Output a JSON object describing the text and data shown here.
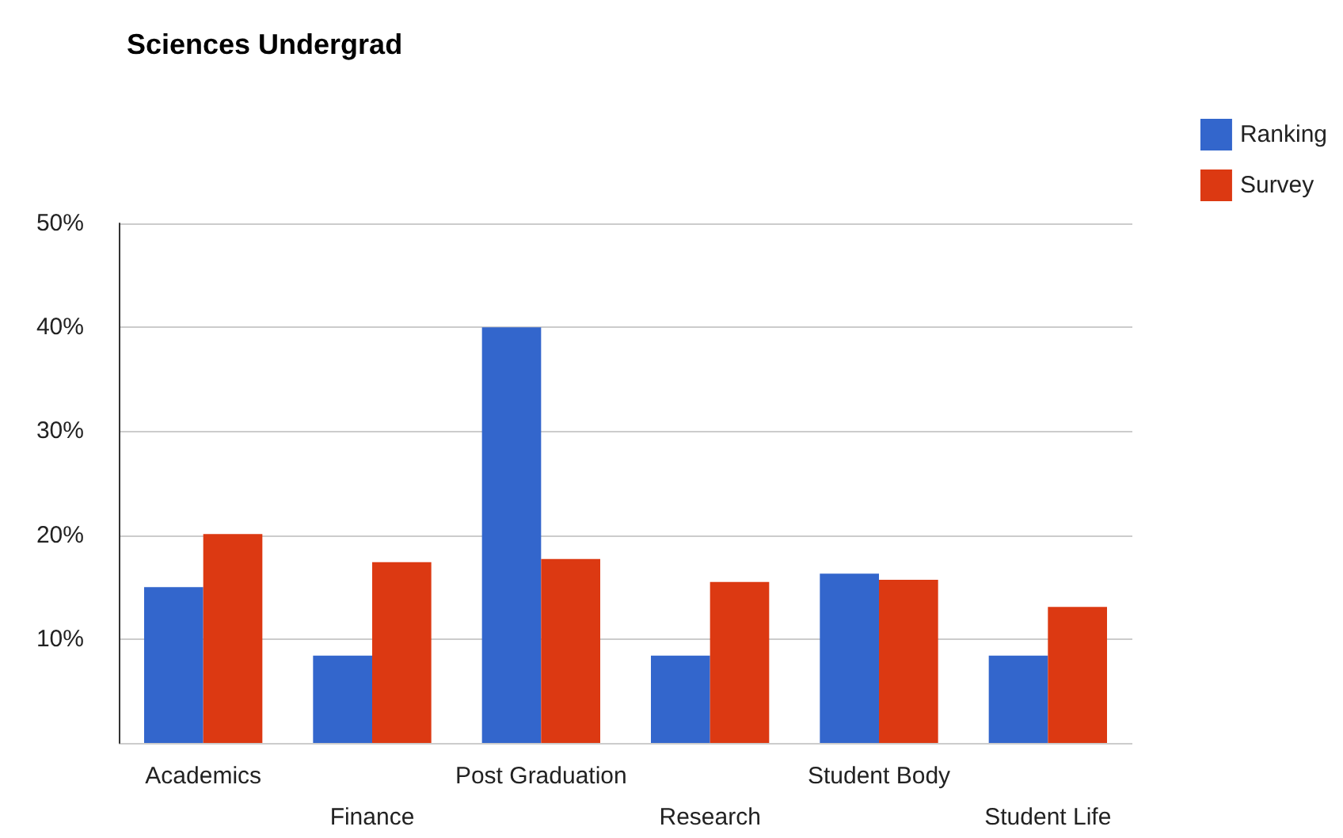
{
  "chart_data": {
    "type": "bar",
    "title": "Sciences Undergrad",
    "categories": [
      "Academics",
      "Finance",
      "Post Graduation",
      "Research",
      "Student Body",
      "Student Life"
    ],
    "series": [
      {
        "name": "Ranking",
        "color": "#3366cc",
        "values": [
          15,
          8.4,
          40,
          8.4,
          16.3,
          8.4
        ]
      },
      {
        "name": "Survey",
        "color": "#dc3912",
        "values": [
          20.1,
          17.4,
          17.7,
          15.5,
          15.7,
          13.1
        ]
      }
    ],
    "ylim": [
      0,
      50
    ],
    "yticks": [
      {
        "value": 0,
        "label": null
      },
      {
        "value": 10,
        "label": "10%"
      },
      {
        "value": 20,
        "label": "20%"
      },
      {
        "value": 30,
        "label": "30%"
      },
      {
        "value": 40,
        "label": "40%"
      },
      {
        "value": 50,
        "label": "50%"
      }
    ],
    "grid": "y",
    "legend": "top right"
  }
}
